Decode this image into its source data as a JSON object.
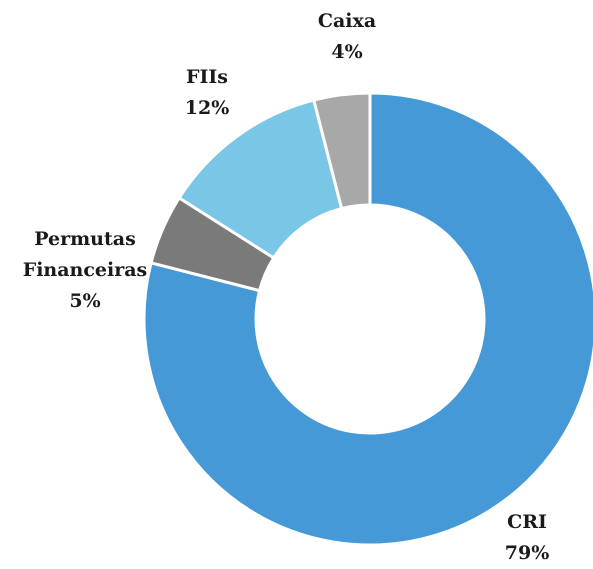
{
  "chart_data": {
    "type": "donut",
    "categories": [
      "CRI",
      "Permutas Financeiras",
      "FIIs",
      "Caixa"
    ],
    "values": [
      79,
      5,
      12,
      4
    ],
    "value_labels": [
      "79%",
      "5%",
      "12%",
      "4%"
    ],
    "colors": [
      "#4599d6",
      "#7a7a7a",
      "#79c6e6",
      "#a8a8a8"
    ]
  }
}
